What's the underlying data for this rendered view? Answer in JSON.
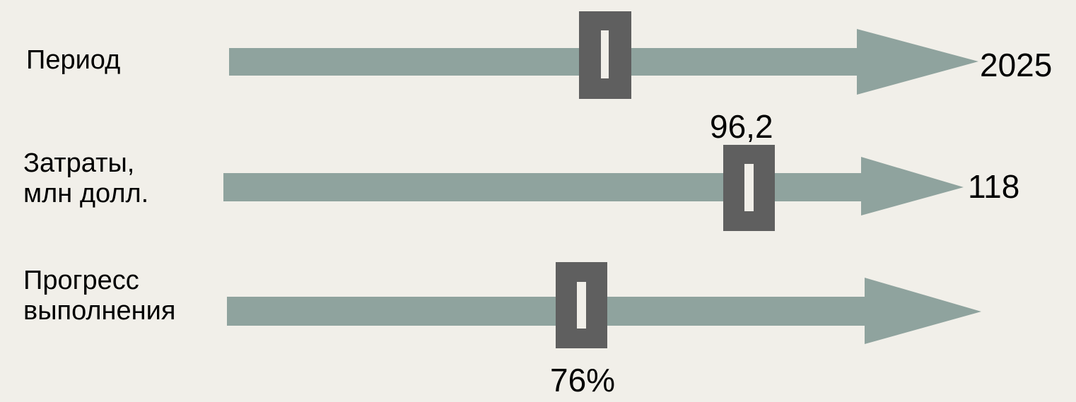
{
  "colors": {
    "background": "#f1efe9",
    "arrow": "#8fa39e",
    "marker": "#5f5f5f",
    "text": "#000000"
  },
  "rows": [
    {
      "label_lines": [
        "Период"
      ],
      "end_value": "2025",
      "marker_value": "",
      "marker_fraction": 0.476
    },
    {
      "label_lines": [
        "Затраты,",
        "млн долл."
      ],
      "end_value": "118",
      "marker_value": "96,2",
      "marker_fraction": 0.7
    },
    {
      "label_lines": [
        "Прогресс",
        "выполнения"
      ],
      "end_value": "",
      "marker_value": "76%",
      "marker_fraction": 0.474
    }
  ]
}
